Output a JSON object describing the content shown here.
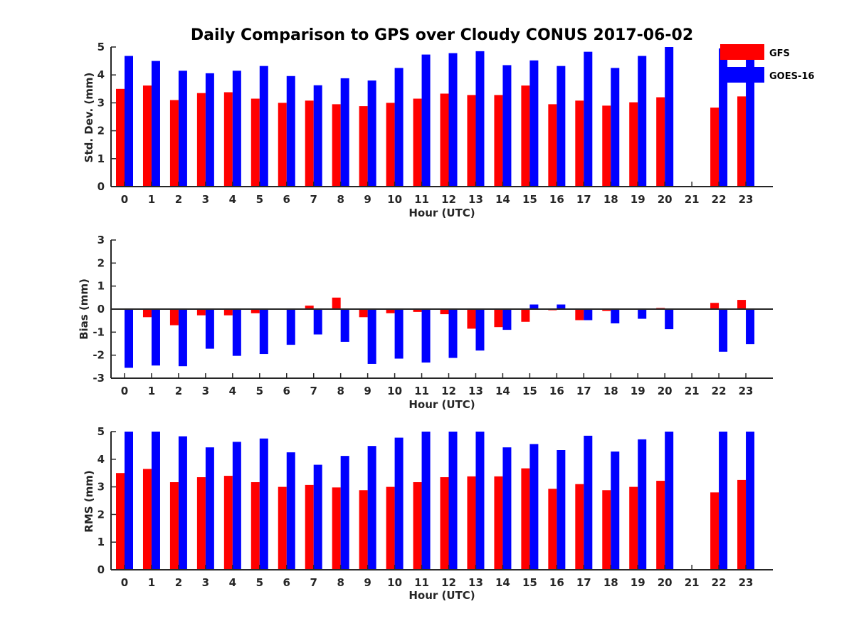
{
  "title": "Daily Comparison to GPS over Cloudy CONUS 2017-06-02",
  "colors": {
    "GFS": "#ff0000",
    "GOES-16": "#0000ff",
    "axis": "#262626"
  },
  "legend": {
    "placement": "top-right",
    "entries": [
      "GFS",
      "GOES-16"
    ]
  },
  "chart_data": [
    {
      "type": "bar",
      "ylabel": "Std. Dev. (mm)",
      "xlabel": "Hour (UTC)",
      "ylim": [
        0,
        5
      ],
      "yticks": [
        0,
        1,
        2,
        3,
        4,
        5
      ],
      "categories": [
        "0",
        "1",
        "2",
        "3",
        "4",
        "5",
        "6",
        "7",
        "8",
        "9",
        "10",
        "11",
        "12",
        "13",
        "14",
        "15",
        "16",
        "17",
        "18",
        "19",
        "20",
        "21",
        "22",
        "23"
      ],
      "series": [
        {
          "name": "GFS",
          "values": [
            3.5,
            3.62,
            3.1,
            3.35,
            3.38,
            3.15,
            3.0,
            3.08,
            2.95,
            2.88,
            3.0,
            3.15,
            3.33,
            3.28,
            3.28,
            3.62,
            2.95,
            3.08,
            2.9,
            3.02,
            3.2,
            null,
            2.83,
            3.23
          ]
        },
        {
          "name": "GOES-16",
          "values": [
            4.68,
            4.5,
            4.15,
            4.06,
            4.15,
            4.32,
            3.96,
            3.63,
            3.88,
            3.8,
            4.25,
            4.73,
            4.78,
            4.85,
            4.35,
            4.52,
            4.32,
            4.83,
            4.25,
            4.68,
            5.0,
            null,
            4.95,
            4.95
          ]
        }
      ]
    },
    {
      "type": "bar",
      "ylabel": "Bias (mm)",
      "xlabel": "Hour (UTC)",
      "ylim": [
        -3,
        3
      ],
      "yticks": [
        -3,
        -2,
        -1,
        0,
        1,
        2,
        3
      ],
      "categories": [
        "0",
        "1",
        "2",
        "3",
        "4",
        "5",
        "6",
        "7",
        "8",
        "9",
        "10",
        "11",
        "12",
        "13",
        "14",
        "15",
        "16",
        "17",
        "18",
        "19",
        "20",
        "21",
        "22",
        "23"
      ],
      "series": [
        {
          "name": "GFS",
          "values": [
            -0.02,
            -0.35,
            -0.7,
            -0.27,
            -0.27,
            -0.18,
            -0.02,
            0.15,
            0.5,
            -0.35,
            -0.18,
            -0.12,
            -0.22,
            -0.85,
            -0.78,
            -0.55,
            -0.05,
            -0.48,
            -0.08,
            -0.02,
            0.05,
            null,
            0.27,
            0.4
          ]
        },
        {
          "name": "GOES-16",
          "values": [
            -2.55,
            -2.45,
            -2.48,
            -1.72,
            -2.03,
            -1.95,
            -1.55,
            -1.1,
            -1.42,
            -2.38,
            -2.15,
            -2.32,
            -2.12,
            -1.8,
            -0.9,
            0.2,
            0.2,
            -0.48,
            -0.62,
            -0.42,
            -0.87,
            null,
            -1.85,
            -1.52
          ]
        }
      ]
    },
    {
      "type": "bar",
      "ylabel": "RMS (mm)",
      "xlabel": "Hour (UTC)",
      "ylim": [
        0,
        5
      ],
      "yticks": [
        0,
        1,
        2,
        3,
        4,
        5
      ],
      "categories": [
        "0",
        "1",
        "2",
        "3",
        "4",
        "5",
        "6",
        "7",
        "8",
        "9",
        "10",
        "11",
        "12",
        "13",
        "14",
        "15",
        "16",
        "17",
        "18",
        "19",
        "20",
        "21",
        "22",
        "23"
      ],
      "series": [
        {
          "name": "GFS",
          "values": [
            3.5,
            3.65,
            3.17,
            3.35,
            3.4,
            3.17,
            3.0,
            3.07,
            2.98,
            2.88,
            3.0,
            3.17,
            3.35,
            3.38,
            3.38,
            3.67,
            2.93,
            3.1,
            2.88,
            3.0,
            3.22,
            null,
            2.8,
            3.25
          ]
        },
        {
          "name": "GOES-16",
          "values": [
            5.0,
            5.0,
            4.83,
            4.43,
            4.63,
            4.75,
            4.25,
            3.8,
            4.12,
            4.48,
            4.78,
            5.0,
            5.0,
            5.0,
            4.43,
            4.55,
            4.33,
            4.85,
            4.28,
            4.72,
            5.0,
            null,
            5.0,
            5.0
          ]
        }
      ]
    }
  ]
}
